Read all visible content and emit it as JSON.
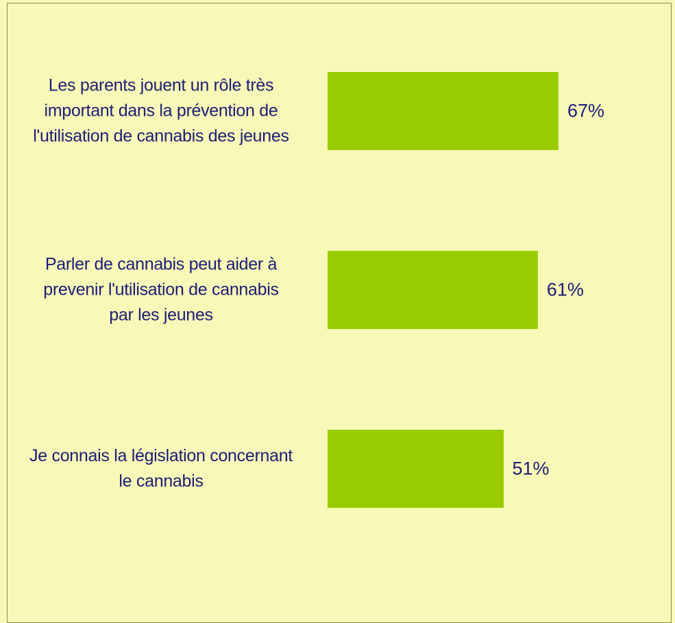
{
  "chart_data": {
    "type": "bar",
    "orientation": "horizontal",
    "categories": [
      "Les parents jouent un rôle très\nimportant dans la prévention de\nl'utilisation de cannabis des jeunes",
      "Parler de cannabis peut aider à\nprevenir l'utilisation de cannabis\npar les jeunes",
      "Je connais la législation concernant\nle cannabis"
    ],
    "values": [
      67,
      61,
      51
    ],
    "value_labels": [
      "67%",
      "61%",
      "51%"
    ],
    "color": "#99cc00",
    "xlim": [
      0,
      100
    ]
  }
}
